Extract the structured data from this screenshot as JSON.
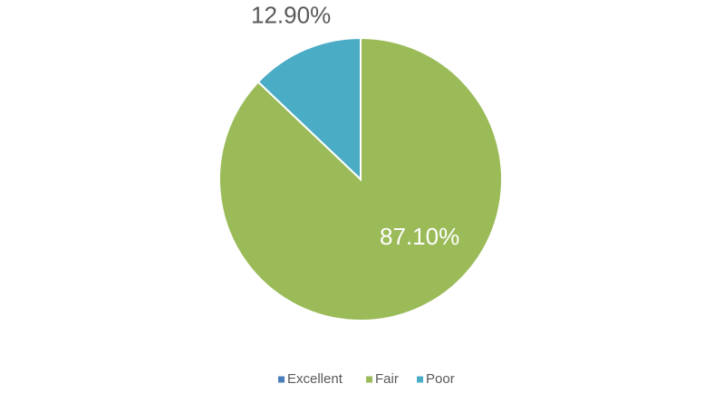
{
  "chart_data": {
    "type": "pie",
    "categories": [
      "Excellent",
      "Fair",
      "Poor"
    ],
    "values": [
      0,
      87.1,
      12.9
    ],
    "value_labels": [
      null,
      "87.10%",
      "12.90%"
    ],
    "colors": [
      "#4a7ebb",
      "#9bbb59",
      "#4bacc6"
    ],
    "legend": "bottom"
  }
}
